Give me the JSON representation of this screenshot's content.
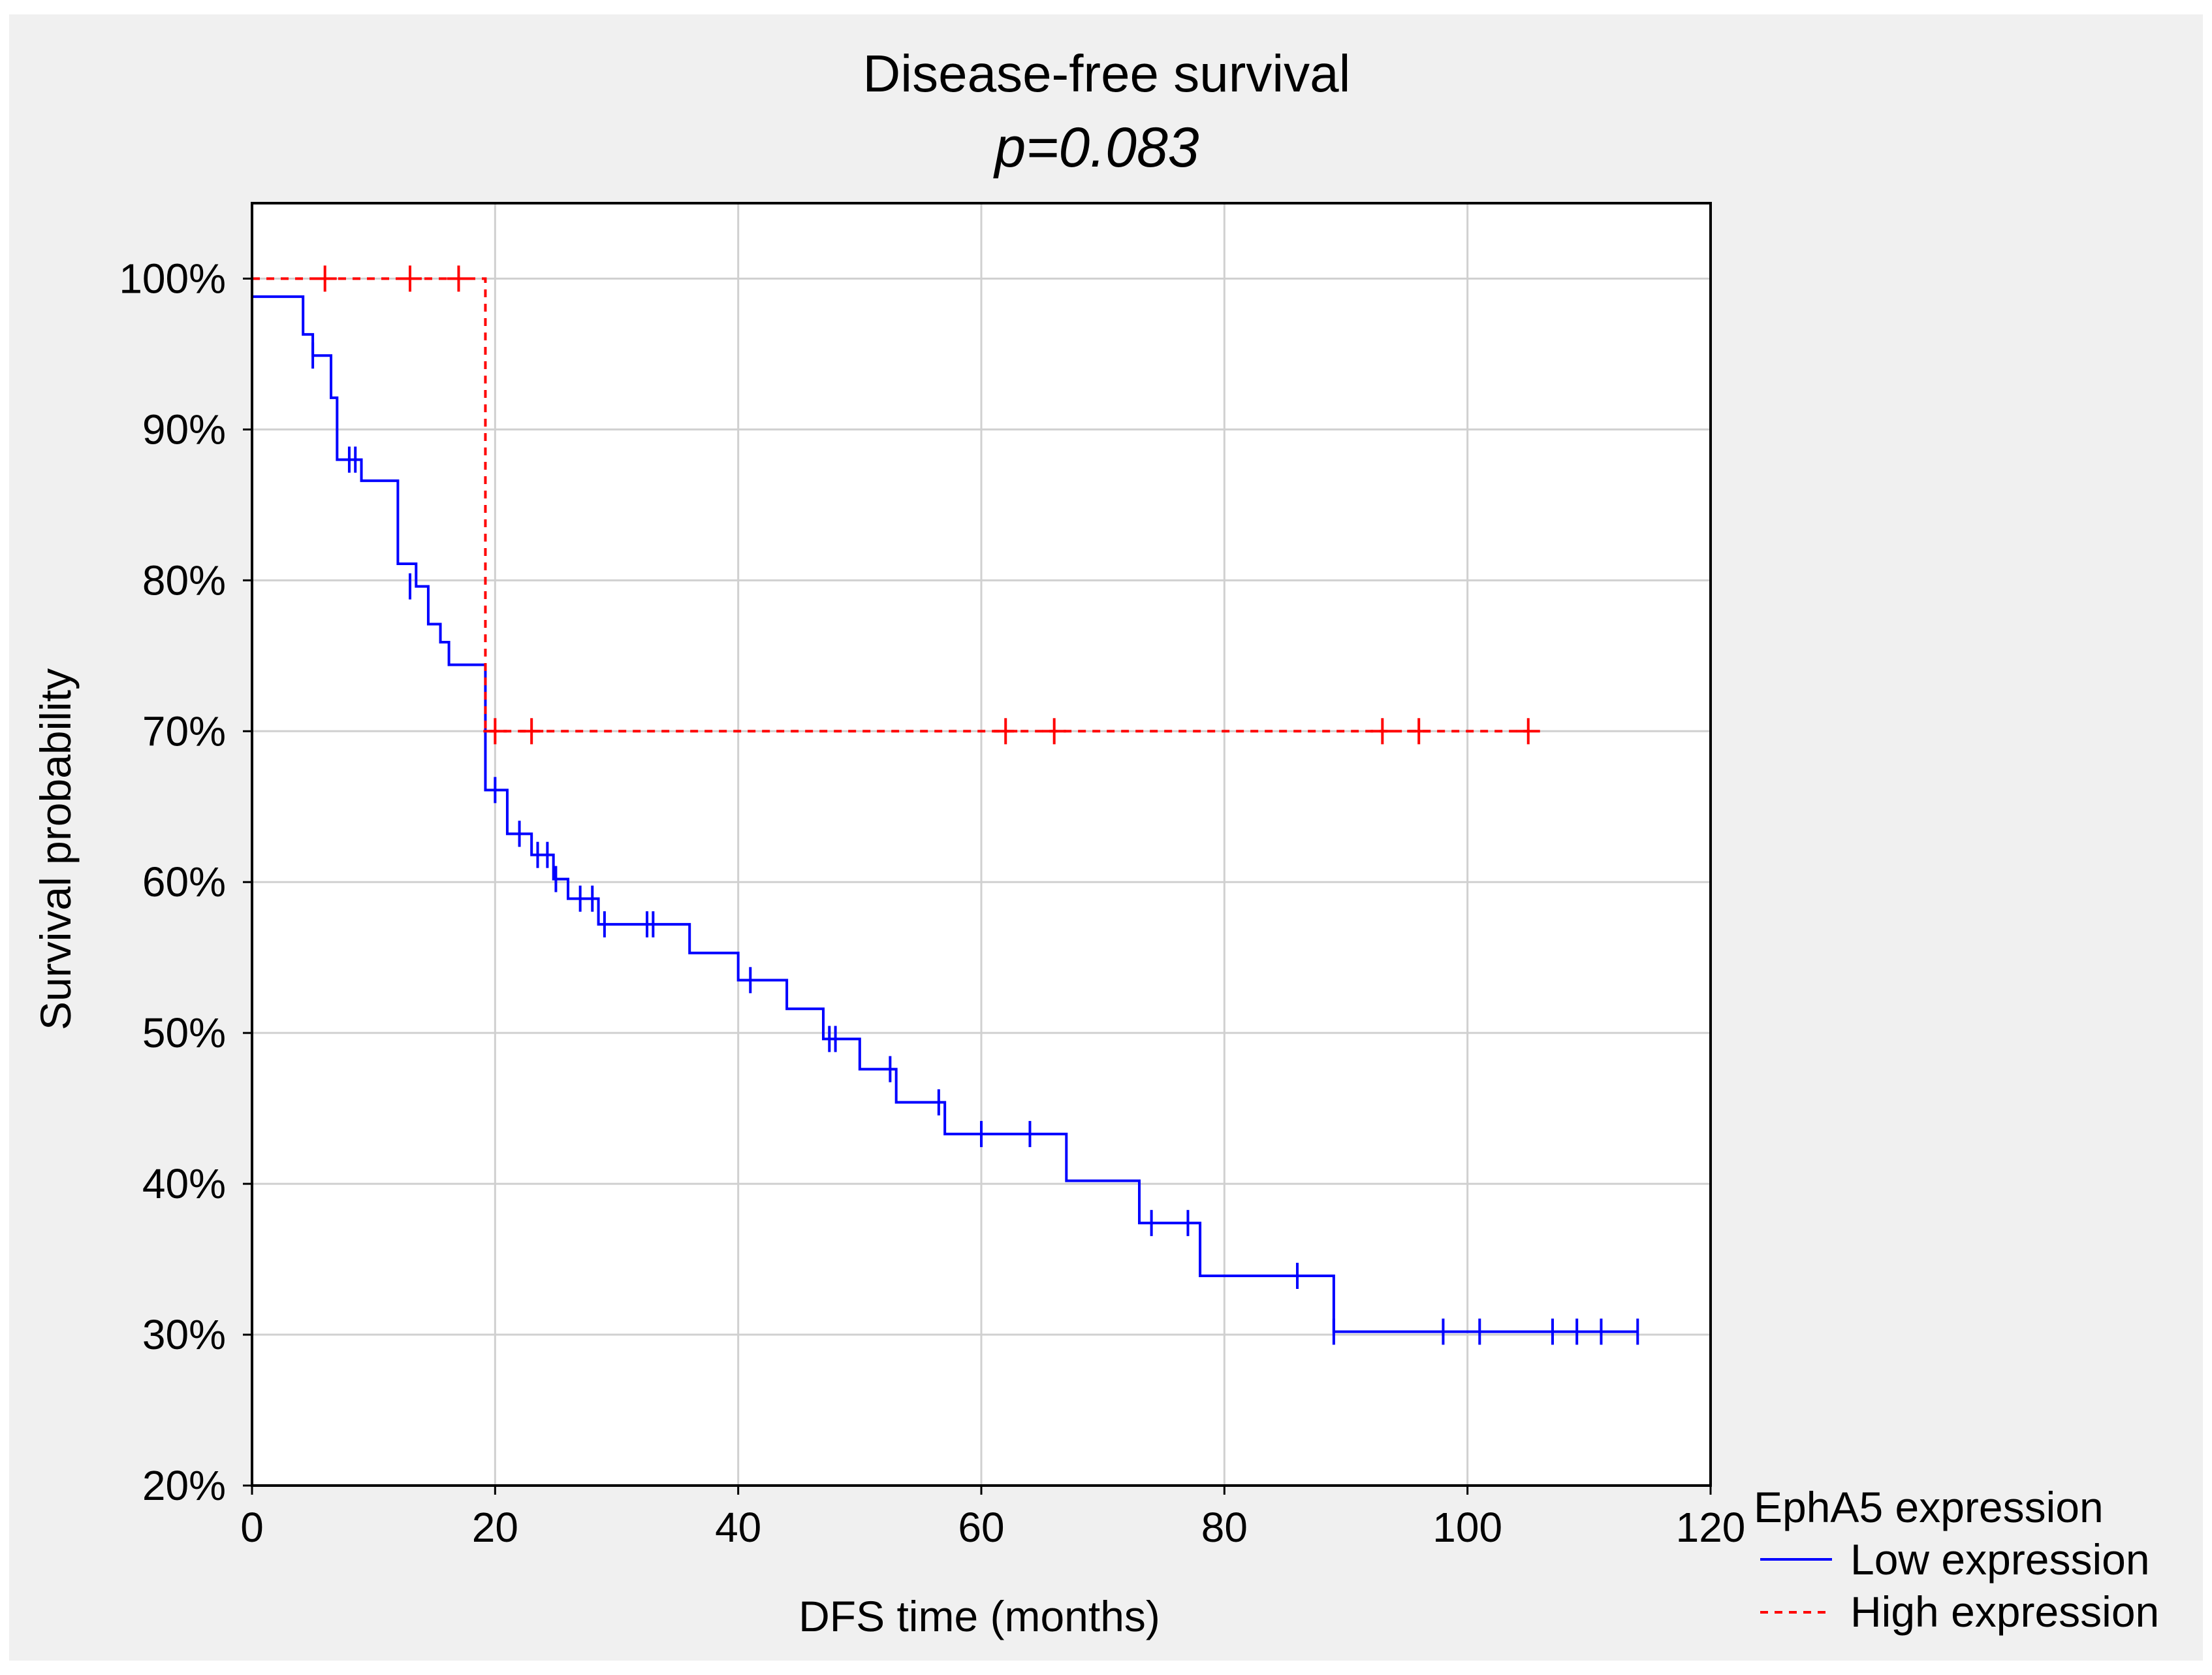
{
  "chart_data": {
    "type": "line",
    "title": "Disease-free survival",
    "subtitle": "p=0.083",
    "xlabel": "DFS time (months)",
    "ylabel": "Survival probability",
    "xlim": [
      0,
      120
    ],
    "ylim": [
      20,
      105
    ],
    "xticks": [
      0,
      20,
      40,
      60,
      80,
      100,
      120
    ],
    "yticks": [
      20,
      30,
      40,
      50,
      60,
      70,
      80,
      90,
      100
    ],
    "ytick_labels": [
      "20%",
      "30%",
      "40%",
      "50%",
      "60%",
      "70%",
      "80%",
      "90%",
      "100%"
    ],
    "grid": true,
    "legend": {
      "title": "EphA5 expression",
      "position": "bottom-right outside",
      "entries": [
        "Low expression",
        "High expression"
      ]
    },
    "series": [
      {
        "name": "Low expression",
        "color": "#0000ff",
        "style": "solid",
        "steps": [
          [
            0,
            98.8
          ],
          [
            4.2,
            96.3
          ],
          [
            5.0,
            94.9
          ],
          [
            6.5,
            92.1
          ],
          [
            7.0,
            88.0
          ],
          [
            9.0,
            86.6
          ],
          [
            12.0,
            81.1
          ],
          [
            13.5,
            79.6
          ],
          [
            14.5,
            77.1
          ],
          [
            15.5,
            75.9
          ],
          [
            16.2,
            74.4
          ],
          [
            19.2,
            66.1
          ],
          [
            21.0,
            63.2
          ],
          [
            23.0,
            61.8
          ],
          [
            24.8,
            60.2
          ],
          [
            26.0,
            58.9
          ],
          [
            28.5,
            57.2
          ],
          [
            36.0,
            55.3
          ],
          [
            40.0,
            53.5
          ],
          [
            44.0,
            51.6
          ],
          [
            47.0,
            49.6
          ],
          [
            50.0,
            47.6
          ],
          [
            53.0,
            45.4
          ],
          [
            57.0,
            43.3
          ],
          [
            67.0,
            40.2
          ],
          [
            73.0,
            37.4
          ],
          [
            78.0,
            33.9
          ],
          [
            89.0,
            30.2
          ],
          [
            114.0,
            30.2
          ]
        ],
        "censored": [
          [
            5.0,
            94.9
          ],
          [
            8.0,
            88.0
          ],
          [
            8.5,
            88.0
          ],
          [
            13.0,
            79.6
          ],
          [
            20.0,
            66.1
          ],
          [
            22.0,
            63.2
          ],
          [
            23.5,
            61.8
          ],
          [
            24.3,
            61.8
          ],
          [
            25.0,
            60.2
          ],
          [
            27.0,
            58.9
          ],
          [
            28.0,
            58.9
          ],
          [
            29.0,
            57.2
          ],
          [
            32.5,
            57.2
          ],
          [
            33.0,
            57.2
          ],
          [
            41.0,
            53.5
          ],
          [
            47.5,
            49.6
          ],
          [
            48.0,
            49.6
          ],
          [
            52.5,
            47.6
          ],
          [
            56.5,
            45.4
          ],
          [
            60.0,
            43.3
          ],
          [
            64.0,
            43.3
          ],
          [
            74.0,
            37.4
          ],
          [
            77.0,
            37.4
          ],
          [
            86.0,
            33.9
          ],
          [
            89.0,
            30.2
          ],
          [
            98.0,
            30.2
          ],
          [
            101.0,
            30.2
          ],
          [
            107.0,
            30.2
          ],
          [
            109.0,
            30.2
          ],
          [
            111.0,
            30.2
          ],
          [
            114.0,
            30.2
          ]
        ]
      },
      {
        "name": "High expression",
        "color": "#ff0000",
        "style": "dashed",
        "steps": [
          [
            0,
            100.0
          ],
          [
            19.2,
            70.0
          ],
          [
            105.0,
            70.0
          ]
        ],
        "censored": [
          [
            6.0,
            100.0
          ],
          [
            13.0,
            100.0
          ],
          [
            17.0,
            100.0
          ],
          [
            20.0,
            70.0
          ],
          [
            23.0,
            70.0
          ],
          [
            62.0,
            70.0
          ],
          [
            66.0,
            70.0
          ],
          [
            93.0,
            70.0
          ],
          [
            96.0,
            70.0
          ],
          [
            105.0,
            70.0
          ]
        ]
      }
    ]
  }
}
